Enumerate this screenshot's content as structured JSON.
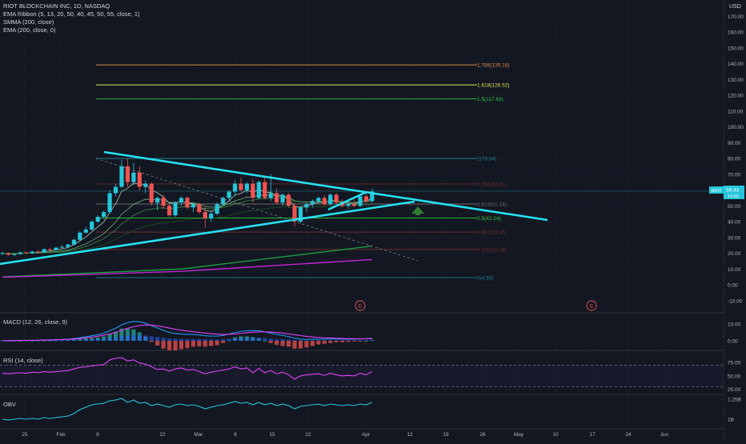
{
  "header": {
    "symbol_line": "RIOT BLOCKCHAIN INC, 1D, NASDAQ",
    "indicators": [
      "EMA Ribbon (5, 13, 20, 50, 40, 45, 50, 55, close, 1)",
      "SMMA (200, close)",
      "EMA (200, close, 0)"
    ],
    "currency": "USD"
  },
  "price_badge": {
    "ticker": "RIOT",
    "price": "59.43",
    "sub": "14:59"
  },
  "earnings_markers": [
    "E",
    "E"
  ],
  "colors": {
    "background": "#131722",
    "up": "#26c6da",
    "down": "#ef5350",
    "trendline": "#26e0f0",
    "macd": "#2196f3",
    "signal": "#e040fb",
    "rsi": "#e040fb",
    "obv": "#26c6da",
    "ema200": "#1b9e3e",
    "smma200": "#c026d3"
  },
  "chart_data": [
    {
      "type": "candlestick",
      "title": "RIOT BLOCKCHAIN INC, 1D, NASDAQ",
      "x_ticks": [
        "25",
        "Feb",
        "8",
        "22",
        "Mar",
        "8",
        "15",
        "22",
        "Apr",
        "12",
        "19",
        "26",
        "May",
        "10",
        "17",
        "24",
        "Jun"
      ],
      "y_ticks": [
        "-10.00",
        "0.00",
        "10.00",
        "20.00",
        "30.00",
        "40.00",
        "50.00",
        "60.00",
        "70.00",
        "80.00",
        "90.00",
        "100.00",
        "110.00",
        "120.00",
        "130.00",
        "140.00",
        "150.00",
        "160.00",
        "170.00"
      ],
      "ylim": [
        -13,
        180
      ],
      "candles": [
        [
          19.5,
          21,
          19,
          20
        ],
        [
          20,
          20.5,
          18.5,
          19
        ],
        [
          19,
          20,
          18,
          19.5
        ],
        [
          19.5,
          21,
          19,
          20.5
        ],
        [
          20.5,
          21,
          19.5,
          20
        ],
        [
          20,
          21.5,
          19.5,
          21
        ],
        [
          21,
          22,
          20,
          20.5
        ],
        [
          20.5,
          23,
          20,
          22.5
        ],
        [
          22.5,
          23.5,
          21.5,
          22
        ],
        [
          22,
          24,
          21.5,
          23.5
        ],
        [
          23.5,
          25,
          23,
          24
        ],
        [
          24,
          26,
          23,
          25.5
        ],
        [
          25.5,
          29,
          25,
          28.5
        ],
        [
          28.5,
          34,
          28,
          33
        ],
        [
          33,
          37,
          32.5,
          35
        ],
        [
          35,
          41,
          34,
          40
        ],
        [
          40,
          44,
          39,
          43
        ],
        [
          43,
          47,
          42,
          46
        ],
        [
          46,
          60,
          45,
          58
        ],
        [
          58,
          64,
          56,
          62
        ],
        [
          62,
          79,
          61,
          75
        ],
        [
          75,
          80,
          62,
          65
        ],
        [
          65,
          77,
          63,
          71
        ],
        [
          71,
          75,
          60,
          62
        ],
        [
          62,
          66,
          58,
          64
        ],
        [
          64,
          65,
          50,
          52
        ],
        [
          52,
          56,
          47,
          55
        ],
        [
          55,
          57,
          48,
          50
        ],
        [
          50,
          51,
          43,
          44
        ],
        [
          44,
          53,
          43,
          52
        ],
        [
          52,
          56,
          50,
          55
        ],
        [
          55,
          56,
          48,
          49
        ],
        [
          49,
          52,
          46,
          51
        ],
        [
          51,
          52,
          45,
          46
        ],
        [
          46,
          49,
          36,
          42
        ],
        [
          42,
          47,
          40,
          45
        ],
        [
          45,
          52,
          44,
          51
        ],
        [
          51,
          56,
          50,
          55
        ],
        [
          55,
          60,
          53,
          59
        ],
        [
          59,
          66,
          57,
          64
        ],
        [
          64,
          68,
          59,
          60
        ],
        [
          60,
          65,
          58,
          64
        ],
        [
          64,
          67,
          52,
          55
        ],
        [
          55,
          66,
          54,
          65
        ],
        [
          65,
          68,
          54,
          55
        ],
        [
          55,
          70,
          53,
          58
        ],
        [
          58,
          61,
          51,
          52
        ],
        [
          52,
          58,
          50,
          57
        ],
        [
          57,
          58,
          49,
          50
        ],
        [
          50,
          52,
          37,
          40
        ],
        [
          40,
          50,
          39,
          49
        ],
        [
          49,
          52,
          46,
          51
        ],
        [
          51,
          54,
          49,
          53
        ],
        [
          53,
          56,
          51,
          55
        ],
        [
          55,
          57,
          50,
          51
        ],
        [
          51,
          58,
          50,
          57
        ],
        [
          57,
          58,
          51,
          52
        ],
        [
          52,
          54,
          49,
          50
        ],
        [
          50,
          52,
          48,
          51
        ],
        [
          51,
          54,
          49,
          50
        ],
        [
          50,
          57,
          49,
          56
        ],
        [
          56,
          58,
          52,
          53
        ],
        [
          53,
          61,
          52,
          59
        ]
      ],
      "fibonacci": [
        {
          "label": "1.786(139.18)",
          "value": 139.18,
          "color": "#d4894a"
        },
        {
          "label": "1.618(126.52)",
          "value": 126.52,
          "color": "#e6e64a"
        },
        {
          "label": "1.5(117.63)",
          "value": 117.63,
          "color": "#2ecc40"
        },
        {
          "label": "1(79.94)",
          "value": 79.94,
          "color": "#1b7f8f"
        },
        {
          "label": "0.786(63.81)",
          "value": 63.81,
          "color": "#6e2e2e"
        },
        {
          "label": "0.618(51.14)",
          "value": 51.14,
          "color": "#6b6b6b"
        },
        {
          "label": "0.5(42.24)",
          "value": 42.24,
          "color": "#2ecc40"
        },
        {
          "label": "0.382(33.35)",
          "value": 33.35,
          "color": "#6b3030"
        },
        {
          "label": "0.236(22.34)",
          "value": 22.34,
          "color": "#6e2e2e"
        },
        {
          "label": "0(4.55)",
          "value": 4.55,
          "color": "#1b7f8f"
        }
      ],
      "ema200": [
        [
          0,
          5
        ],
        [
          30,
          10
        ],
        [
          62,
          24.5
        ]
      ],
      "smma200": [
        [
          0,
          4.8
        ],
        [
          30,
          8.5
        ],
        [
          62,
          16
        ]
      ]
    },
    {
      "type": "line",
      "title": "MACD (12, 26, close, 9)",
      "y_ticks": [
        "10.00",
        "0.00"
      ],
      "ylim": [
        -4,
        15
      ],
      "series": [
        {
          "name": "",
          "values": [
            0.1,
            0.1,
            0.2,
            0.2,
            0.3,
            0.3,
            0.4,
            0.5,
            0.6,
            0.7,
            0.8,
            1,
            1.3,
            1.8,
            2.4,
            3,
            3.6,
            4.5,
            6,
            7.5,
            9.5,
            10.8,
            11.5,
            11.4,
            10.5,
            9,
            7.6,
            6.2,
            5,
            4.3,
            4,
            3.8,
            3.8,
            3.5,
            3,
            2.8,
            2.8,
            3.2,
            4,
            5,
            5.6,
            6,
            6.1,
            6,
            5.3,
            4.6,
            3.8,
            3.2,
            2.5,
            1.5,
            1,
            0.8,
            0.9,
            1,
            1,
            1.1,
            1.1,
            1,
            1,
            1,
            1.1,
            1.2,
            1.5
          ]
        },
        {
          "name": "",
          "values": [
            0,
            0.1,
            0.1,
            0.2,
            0.2,
            0.3,
            0.3,
            0.4,
            0.5,
            0.6,
            0.7,
            0.8,
            1,
            1.3,
            1.7,
            2.2,
            2.7,
            3.3,
            4.1,
            5,
            6.2,
            7.4,
            8.4,
            9.1,
            9.4,
            9.3,
            8.9,
            8.3,
            7.6,
            6.9,
            6.3,
            5.8,
            5.4,
            5,
            4.6,
            4.2,
            4,
            3.8,
            3.9,
            4.1,
            4.4,
            4.8,
            5.1,
            5.3,
            5.3,
            5.2,
            4.9,
            4.6,
            4.1,
            3.6,
            3.1,
            2.6,
            2.3,
            2,
            1.8,
            1.7,
            1.5,
            1.4,
            1.3,
            1.2,
            1.2,
            1.2,
            1.3
          ]
        }
      ]
    },
    {
      "type": "line",
      "title": "RSI (14, close)",
      "y_ticks": [
        "75.00",
        "50.00",
        "25.00"
      ],
      "ylim": [
        20,
        95
      ],
      "bands": [
        70,
        30
      ],
      "series": [
        {
          "name": "",
          "values": [
            55,
            54,
            55,
            56,
            55,
            57,
            56,
            58,
            57,
            58,
            59,
            60,
            63,
            66,
            67,
            69,
            70,
            71,
            80,
            83,
            84,
            78,
            80,
            74,
            72,
            67,
            62,
            63,
            59,
            63,
            65,
            61,
            62,
            58,
            54,
            57,
            59,
            61,
            63,
            67,
            63,
            65,
            56,
            64,
            56,
            60,
            54,
            57,
            52,
            44,
            50,
            52,
            53,
            54,
            51,
            55,
            52,
            50,
            51,
            50,
            55,
            52,
            58
          ]
        }
      ]
    },
    {
      "type": "line",
      "title": "OBV",
      "y_ticks": [
        "1.25B",
        "1B"
      ],
      "ylim": [
        0.9,
        1.33
      ],
      "series": [
        {
          "name": "",
          "values": [
            1.0,
            0.99,
            1.0,
            1.01,
            1.0,
            1.01,
            1.0,
            1.02,
            1.01,
            1.02,
            1.03,
            1.04,
            1.07,
            1.12,
            1.15,
            1.18,
            1.19,
            1.2,
            1.23,
            1.24,
            1.26,
            1.21,
            1.24,
            1.2,
            1.21,
            1.17,
            1.19,
            1.17,
            1.15,
            1.18,
            1.19,
            1.17,
            1.18,
            1.16,
            1.13,
            1.15,
            1.17,
            1.18,
            1.2,
            1.22,
            1.2,
            1.21,
            1.18,
            1.21,
            1.18,
            1.2,
            1.17,
            1.19,
            1.17,
            1.13,
            1.16,
            1.17,
            1.18,
            1.19,
            1.17,
            1.19,
            1.18,
            1.17,
            1.18,
            1.17,
            1.19,
            1.18,
            1.21
          ]
        }
      ]
    }
  ]
}
